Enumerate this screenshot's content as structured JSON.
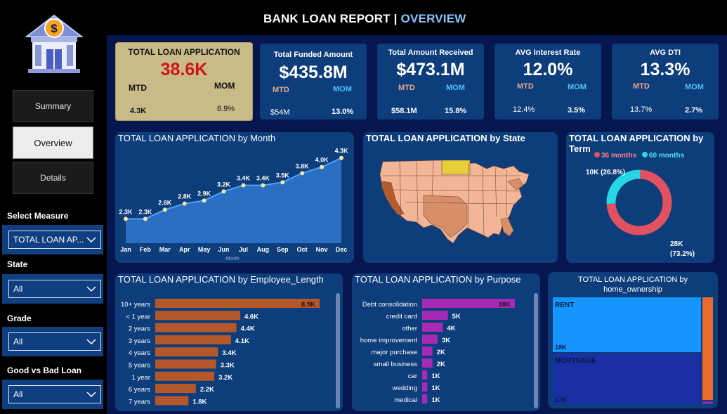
{
  "header": {
    "title_main": "BANK LOAN REPORT | ",
    "title_highlight": "OVERVIEW"
  },
  "logo": {
    "icon": "bank-dollar-icon",
    "glyph": "$"
  },
  "nav": {
    "summary": "Summary",
    "overview": "Overview",
    "details": "Details",
    "active": "overview"
  },
  "filters": {
    "measure_label": "Select Measure",
    "measure_value": "TOTAL LOAN AP...",
    "state_label": "State",
    "state_value": "All",
    "grade_label": "Grade",
    "grade_value": "All",
    "loan_label": "Good vs Bad Loan",
    "loan_value": "All"
  },
  "kpis": [
    {
      "title": "TOTAL LOAN  APPLICATION",
      "value": "38.6K",
      "mtd_label": "MTD",
      "mom_label": "MOM",
      "mtd": "4.3K",
      "mom": "6.9%"
    },
    {
      "title": "Total Funded Amount",
      "value": "$435.8M",
      "mtd_label": "MTD",
      "mom_label": "MOM",
      "mtd": "$54M",
      "mom": "13.0%"
    },
    {
      "title": "Total Amount Received",
      "value": "$473.1M",
      "mtd_label": "MTD",
      "mom_label": "MOM",
      "mtd": "$58.1M",
      "mom": "15.8%"
    },
    {
      "title": "AVG Interest Rate",
      "value": "12.0%",
      "mtd_label": "MTD",
      "mom_label": "MOM",
      "mtd": "12.4%",
      "mom": "3.5%"
    },
    {
      "title": "AVG DTI",
      "value": "13.3%",
      "mtd_label": "MTD",
      "mom_label": "MOM",
      "mtd": "13.7%",
      "mom": "2.7%"
    }
  ],
  "colors": {
    "kpi_red": "#d0121c",
    "area_fill": "#2a6fc4",
    "bar_orange": "#b4572b",
    "bar_purple": "#a62ab5",
    "donut_36": "#e05260",
    "donut_60": "#26d6e6",
    "rent": "#1596ff",
    "mortgage": "#1b2fa5",
    "other": "#ea6b2d"
  },
  "month_chart": {
    "title": "TOTAL LOAN APPLICATION by Month",
    "xlabel": "Month",
    "chart_data": {
      "type": "area",
      "categories": [
        "Jan",
        "Feb",
        "Mar",
        "Apr",
        "May",
        "Jun",
        "Jul",
        "Aug",
        "Sep",
        "Oct",
        "Nov",
        "Dec"
      ],
      "values": [
        2.3,
        2.3,
        2.6,
        2.8,
        2.9,
        3.2,
        3.4,
        3.4,
        3.5,
        3.8,
        4.0,
        4.3
      ],
      "labels": [
        "2.3K",
        "2.3K",
        "2.6K",
        "2.8K",
        "2.9K",
        "3.2K",
        "3.4K",
        "3.4K",
        "3.5K",
        "3.8K",
        "4.0K",
        "4.3K"
      ]
    }
  },
  "state_map": {
    "title": "TOTAL LOAN APPLICATION by State"
  },
  "term_chart": {
    "title": "TOTAL LOAN APPLICATION by Term",
    "chart_data": {
      "type": "pie",
      "categories": [
        "36 months",
        "60 months"
      ],
      "values": [
        28,
        10
      ],
      "labels": [
        "28K\n(73.2%)",
        "10K (26.8%)"
      ]
    },
    "label_36_line1": "28K",
    "label_36_line2": "(73.2%)",
    "label_60": "10K (26.8%)"
  },
  "emp_chart": {
    "title": "TOTAL LOAN APPLICATION by Employee_Length",
    "chart_data": {
      "type": "bar",
      "categories": [
        "10+ years",
        "< 1 year",
        "2 years",
        "3 years",
        "4 years",
        "5 years",
        "1 year",
        "6 years",
        "7 years"
      ],
      "values": [
        8.9,
        4.6,
        4.4,
        4.1,
        3.4,
        3.3,
        3.2,
        2.2,
        1.8
      ],
      "labels": [
        "8.9K",
        "4.6K",
        "4.4K",
        "4.1K",
        "3.4K",
        "3.3K",
        "3.2K",
        "2.2K",
        "1.8K"
      ]
    }
  },
  "purpose_chart": {
    "title": "TOTAL LOAN APPLICATION by Purpose",
    "chart_data": {
      "type": "bar",
      "categories": [
        "Debt consolidation",
        "credit card",
        "other",
        "home improvement",
        "major purchase",
        "small business",
        "car",
        "wedding",
        "medical"
      ],
      "values": [
        18,
        5,
        4,
        3,
        2,
        2,
        1,
        1,
        1
      ],
      "labels": [
        "18K",
        "5K",
        "4K",
        "3K",
        "2K",
        "2K",
        "1K",
        "1K",
        "1K"
      ]
    }
  },
  "home_chart": {
    "title_line1": "TOTAL LOAN APPLICATION by",
    "title_line2": "home_ownership",
    "chart_data": {
      "type": "treemap",
      "categories": [
        "RENT",
        "MORTGAGE"
      ],
      "labels": [
        "18K",
        "17K"
      ]
    }
  }
}
